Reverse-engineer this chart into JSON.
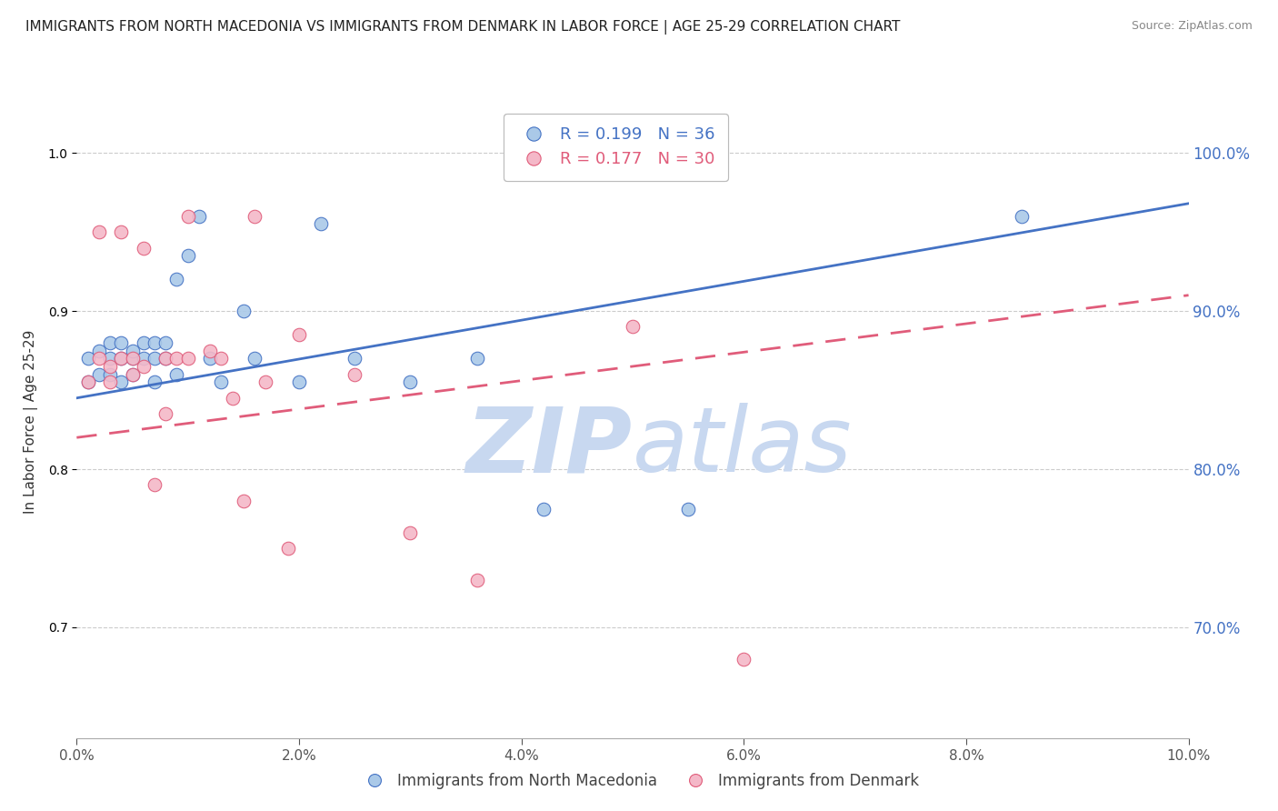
{
  "title": "IMMIGRANTS FROM NORTH MACEDONIA VS IMMIGRANTS FROM DENMARK IN LABOR FORCE | AGE 25-29 CORRELATION CHART",
  "source": "Source: ZipAtlas.com",
  "ylabel": "In Labor Force | Age 25-29",
  "xlim": [
    0.0,
    0.1
  ],
  "ylim": [
    0.63,
    1.03
  ],
  "yticks": [
    0.7,
    0.8,
    0.9,
    1.0
  ],
  "xticks": [
    0.0,
    0.02,
    0.04,
    0.06,
    0.08,
    0.1
  ],
  "legend_labels": [
    "Immigrants from North Macedonia",
    "Immigrants from Denmark"
  ],
  "series1_color": "#aac9e8",
  "series2_color": "#f4b8c8",
  "series1_line_color": "#4472c4",
  "series2_line_color": "#e05c7a",
  "R1": 0.199,
  "N1": 36,
  "R2": 0.177,
  "N2": 30,
  "watermark_zip": "ZIP",
  "watermark_atlas": "atlas",
  "watermark_color_zip": "#c8d8f0",
  "watermark_color_atlas": "#c8d8f0",
  "title_color": "#222222",
  "axis_label_color": "#4472c4",
  "grid_color": "#cccccc",
  "series1_x": [
    0.001,
    0.001,
    0.002,
    0.002,
    0.003,
    0.003,
    0.003,
    0.004,
    0.004,
    0.004,
    0.005,
    0.005,
    0.005,
    0.006,
    0.006,
    0.007,
    0.007,
    0.007,
    0.008,
    0.008,
    0.009,
    0.009,
    0.01,
    0.011,
    0.012,
    0.013,
    0.015,
    0.016,
    0.02,
    0.022,
    0.025,
    0.03,
    0.036,
    0.042,
    0.055,
    0.085
  ],
  "series1_y": [
    0.855,
    0.87,
    0.86,
    0.875,
    0.86,
    0.87,
    0.88,
    0.855,
    0.87,
    0.88,
    0.86,
    0.87,
    0.875,
    0.87,
    0.88,
    0.855,
    0.87,
    0.88,
    0.87,
    0.88,
    0.86,
    0.92,
    0.935,
    0.96,
    0.87,
    0.855,
    0.9,
    0.87,
    0.855,
    0.955,
    0.87,
    0.855,
    0.87,
    0.775,
    0.775,
    0.96
  ],
  "series2_x": [
    0.001,
    0.002,
    0.002,
    0.003,
    0.003,
    0.004,
    0.004,
    0.005,
    0.005,
    0.006,
    0.006,
    0.007,
    0.008,
    0.008,
    0.009,
    0.01,
    0.01,
    0.012,
    0.013,
    0.014,
    0.015,
    0.016,
    0.017,
    0.019,
    0.02,
    0.025,
    0.03,
    0.036,
    0.05,
    0.06
  ],
  "series2_y": [
    0.855,
    0.87,
    0.95,
    0.855,
    0.865,
    0.87,
    0.95,
    0.86,
    0.87,
    0.865,
    0.94,
    0.79,
    0.835,
    0.87,
    0.87,
    0.87,
    0.96,
    0.875,
    0.87,
    0.845,
    0.78,
    0.96,
    0.855,
    0.75,
    0.885,
    0.86,
    0.76,
    0.73,
    0.89,
    0.68
  ],
  "trendline1_x": [
    0.0,
    0.1
  ],
  "trendline1_y": [
    0.845,
    0.968
  ],
  "trendline2_x": [
    0.0,
    0.1
  ],
  "trendline2_y": [
    0.82,
    0.91
  ]
}
